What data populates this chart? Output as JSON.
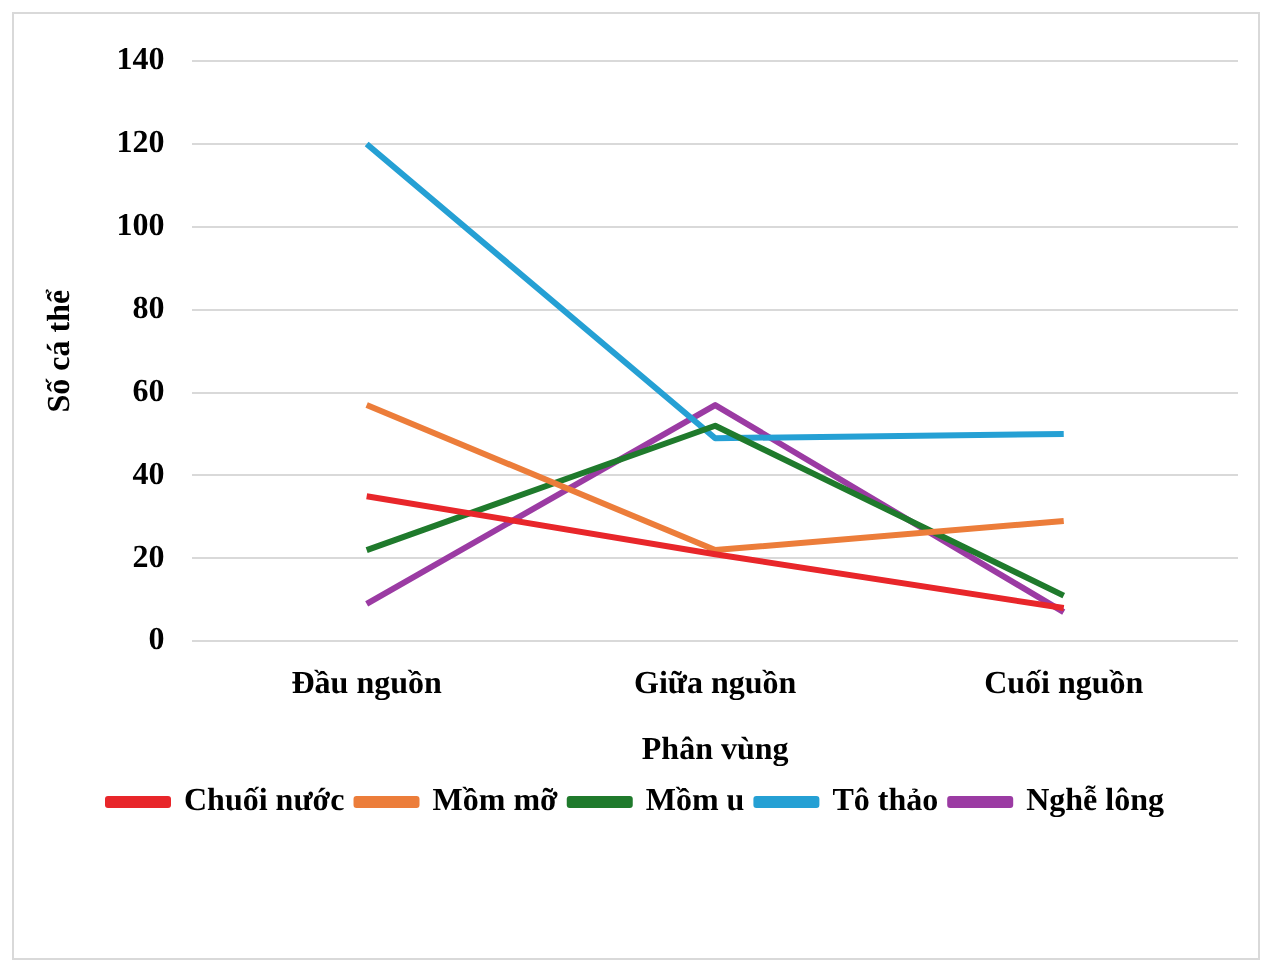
{
  "chart_data": {
    "type": "line",
    "xlabel": "Phân vùng",
    "ylabel": "Số cá thể",
    "categories": [
      "Đầu nguồn",
      "Giữa nguồn",
      "Cuối nguồn"
    ],
    "series": [
      {
        "name": "Chuối nước",
        "color": "#e8262a",
        "values": [
          35,
          21,
          8
        ]
      },
      {
        "name": "Mồm mỡ",
        "color": "#ec7d3a",
        "values": [
          57,
          22,
          29
        ]
      },
      {
        "name": "Mồm u",
        "color": "#1f7a2c",
        "values": [
          22,
          52,
          11
        ]
      },
      {
        "name": "Tô thảo",
        "color": "#25a0d4",
        "values": [
          120,
          49,
          50
        ]
      },
      {
        "name": "Nghễ lông",
        "color": "#9b3ba3",
        "values": [
          9,
          57,
          7
        ]
      }
    ],
    "ylim": [
      0,
      140
    ],
    "yticks": [
      0,
      20,
      40,
      60,
      80,
      100,
      120,
      140
    ],
    "grid": "y",
    "legend": "bottom",
    "marker": "none",
    "line_style": "solid"
  }
}
